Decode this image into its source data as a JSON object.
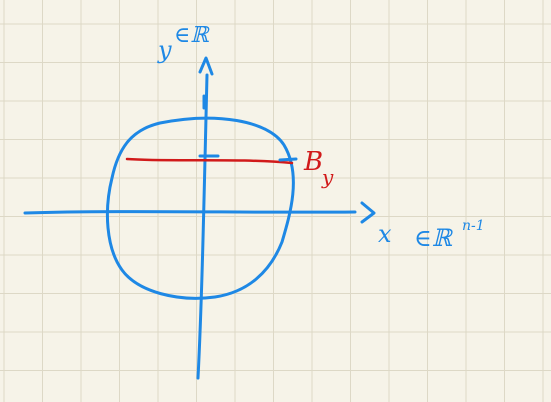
{
  "colors": {
    "paper": "#f6f3e8",
    "grid": "#ddd8c6",
    "ink_blue": "#1e88e5",
    "ink_red": "#d11a1a"
  },
  "labels": {
    "y_axis_var": "y",
    "y_axis_space": "∈ℝ",
    "x_axis_var": "x",
    "x_axis_space": "∈ℝ",
    "x_axis_exponent": "n-1",
    "slice_label": "B",
    "slice_label_sub": "y"
  }
}
